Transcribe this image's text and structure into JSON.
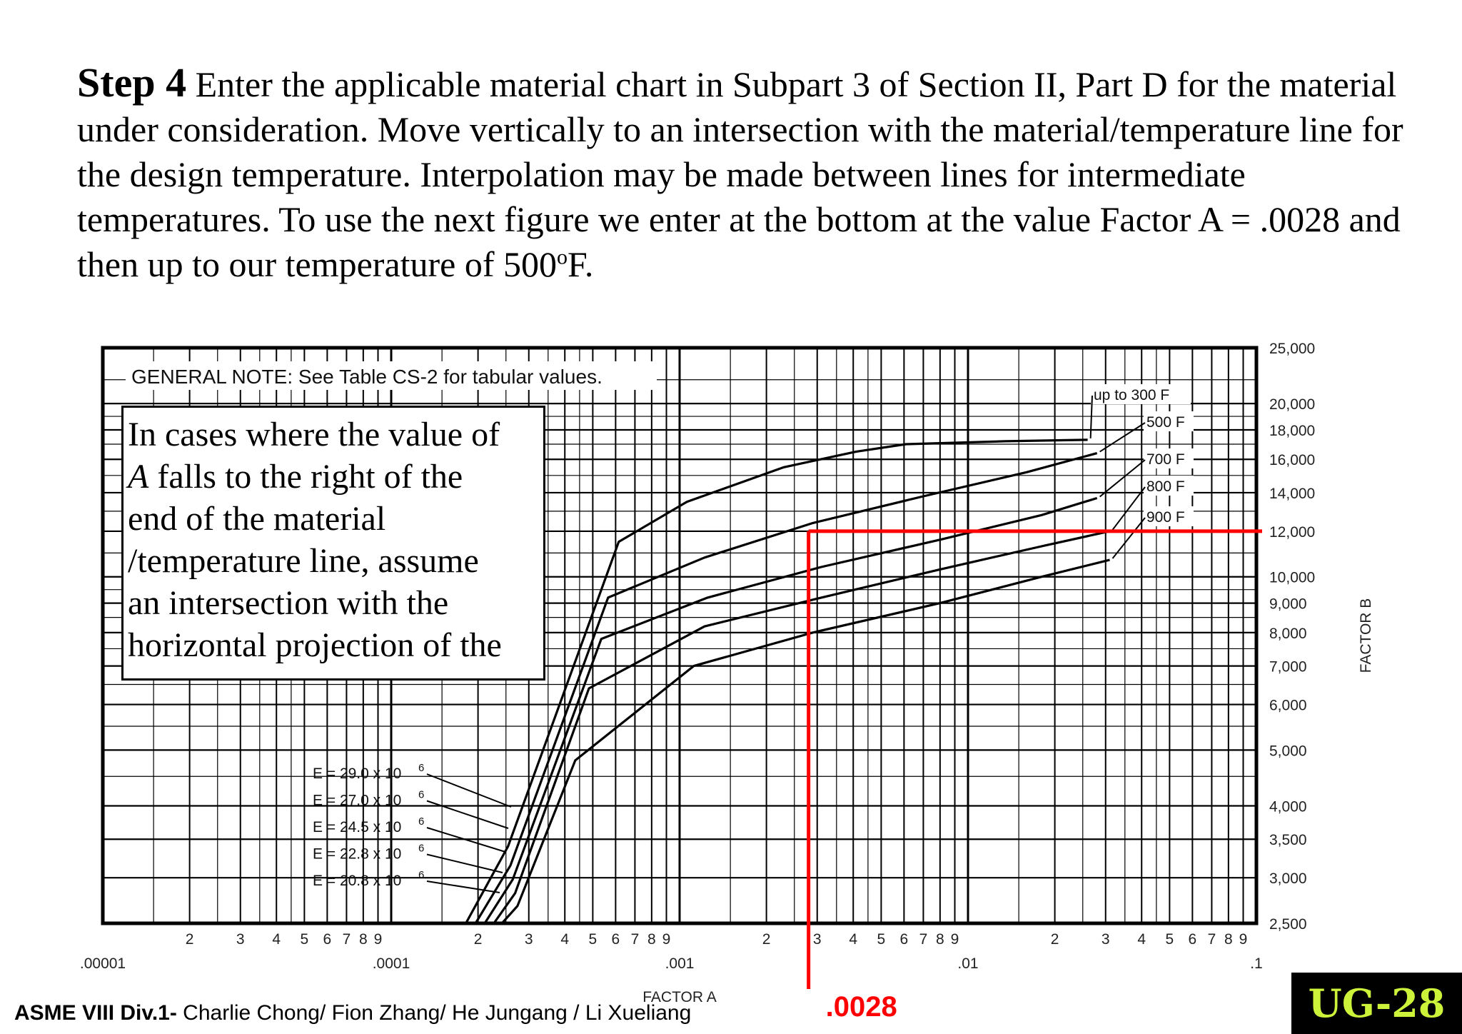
{
  "header": {
    "step_label": "Step 4",
    "step_text": " Enter the applicable material chart in Subpart 3 of Section II, Part D for the material under consideration. Move vertically to an intersection with the material/temperature line for the design temperature. Interpolation may be made between lines for intermediate temperatures. To use the next figure we enter at the bottom at the value Factor A = .0028 and then up to our temperature of 500",
    "step_sup": "o",
    "step_end": "F."
  },
  "note_box": {
    "line1": "In cases where the value of",
    "line2_italic": "A",
    "line2_rest": " falls to the right of the",
    "line3": "end of the material",
    "line4": "/temperature line, assume",
    "line5": "an intersection with the",
    "line6": "horizontal projection of the"
  },
  "chart_data": {
    "type": "line",
    "title": "",
    "general_note": "GENERAL NOTE: See Table CS-2 for tabular values.",
    "xlabel": "FACTOR A",
    "ylabel": "FACTOR B",
    "x_scale": "log",
    "y_scale": "log",
    "xlim": [
      1e-05,
      0.1
    ],
    "ylim": [
      2500,
      25000
    ],
    "grid": true,
    "x_decade_labels": [
      ".00001",
      ".0001",
      ".001",
      ".01",
      ".1"
    ],
    "x_minor_labels": [
      "2",
      "3",
      "4",
      "5",
      "6",
      "7",
      "8",
      "9"
    ],
    "y_tick_labels": [
      "25,000",
      "20,000",
      "18,000",
      "16,000",
      "14,000",
      "12,000",
      "10,000",
      "9,000",
      "8,000",
      "7,000",
      "6,000",
      "5,000",
      "4,000",
      "3,500",
      "3,000",
      "2,500"
    ],
    "y_tick_values": [
      25000,
      20000,
      18000,
      16000,
      14000,
      12000,
      10000,
      9000,
      8000,
      7000,
      6000,
      5000,
      4000,
      3500,
      3000,
      2500
    ],
    "series": [
      {
        "name": "up to 300 F",
        "x": [
          0.0001815,
          0.000254,
          0.000615,
          0.00106,
          0.0023,
          0.0041,
          0.0061,
          0.0135,
          0.026
        ],
        "y": [
          2500,
          3400,
          11500,
          13500,
          15500,
          16500,
          17000,
          17200,
          17300
        ]
      },
      {
        "name": "500 F",
        "x": [
          0.000196,
          0.000259,
          0.000565,
          0.00122,
          0.0029,
          0.007,
          0.016,
          0.028
        ],
        "y": [
          2500,
          3150,
          9200,
          10800,
          12400,
          13800,
          15200,
          16400
        ]
      },
      {
        "name": "700 F",
        "x": [
          0.000211,
          0.000264,
          0.000535,
          0.00125,
          0.0031,
          0.008,
          0.018,
          0.028
        ],
        "y": [
          2500,
          2980,
          7800,
          9200,
          10400,
          11600,
          12800,
          13700
        ]
      },
      {
        "name": "800 F",
        "x": [
          0.000227,
          0.000269,
          0.000485,
          0.00122,
          0.0031,
          0.008,
          0.018,
          0.031
        ],
        "y": [
          2500,
          2820,
          6400,
          8200,
          9200,
          10300,
          11300,
          12000
        ]
      },
      {
        "name": "900 F",
        "x": [
          0.000242,
          0.000274,
          0.000435,
          0.00112,
          0.0029,
          0.008,
          0.018,
          0.031
        ],
        "y": [
          2500,
          2680,
          4800,
          7000,
          8000,
          9000,
          10000,
          10700
        ]
      }
    ],
    "temperature_labels": [
      "up  to  300 F",
      "500 F",
      "700 F",
      "800 F",
      "900 F"
    ],
    "modulus_labels": [
      {
        "text": "E = 29.0 x 10",
        "exp": "6"
      },
      {
        "text": "E = 27.0 x 10",
        "exp": "6"
      },
      {
        "text": "E = 24.5 x 10",
        "exp": "6"
      },
      {
        "text": "E = 22.8 x 10",
        "exp": "6"
      },
      {
        "text": "E = 20.8 x 10",
        "exp": "6"
      }
    ],
    "annotation": {
      "factor_a": 0.0028,
      "factor_b": 12000,
      "label": ".0028",
      "color": "#ff0000"
    }
  },
  "footer": {
    "bold": "ASME VIII Div.1-",
    "authors": " Charlie Chong/ Fion Zhang/ He Jungang / Li Xueliang",
    "badge": "UG-28",
    "badge_color": "#ccf23a"
  }
}
